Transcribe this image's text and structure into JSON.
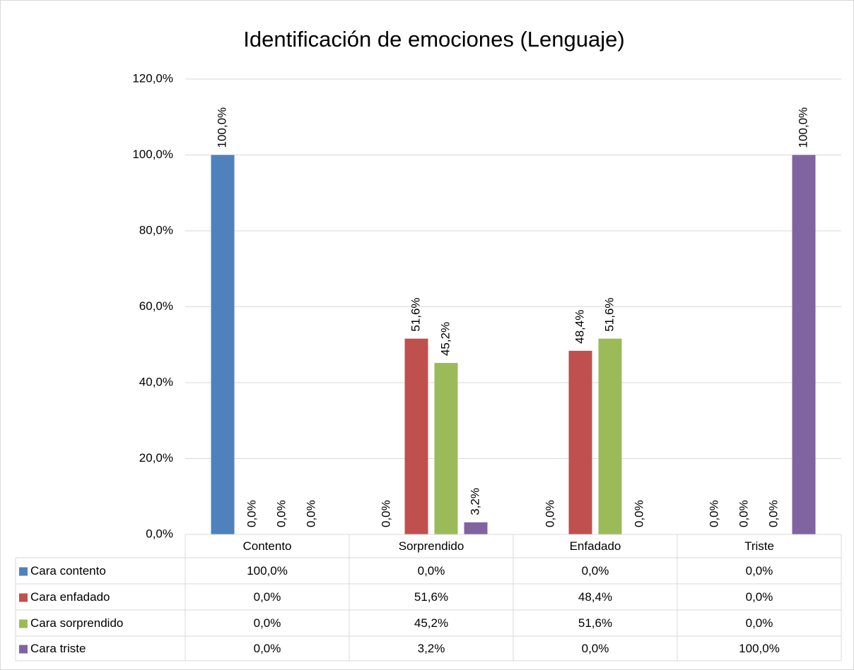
{
  "chart_data": {
    "type": "bar",
    "title": "Identificación de emociones (Lenguaje)",
    "categories": [
      "Contento",
      "Sorprendido",
      "Enfadado",
      "Triste"
    ],
    "series": [
      {
        "name": "Cara contento",
        "color": "#4f81bd",
        "values": [
          100,
          0,
          0,
          0
        ],
        "value_labels": [
          "100,0%",
          "0,0%",
          "0,0%",
          "0,0%"
        ]
      },
      {
        "name": "Cara enfadado",
        "color": "#c0504d",
        "values": [
          0,
          51.6,
          48.4,
          0
        ],
        "value_labels": [
          "0,0%",
          "51,6%",
          "48,4%",
          "0,0%"
        ]
      },
      {
        "name": "Cara sorprendido",
        "color": "#9bbb59",
        "values": [
          0,
          45.2,
          51.6,
          0
        ],
        "value_labels": [
          "0,0%",
          "45,2%",
          "51,6%",
          "0,0%"
        ]
      },
      {
        "name": "Cara triste",
        "color": "#8064a2",
        "values": [
          0,
          3.2,
          0,
          100
        ],
        "value_labels": [
          "0,0%",
          "3,2%",
          "0,0%",
          "100,0%"
        ]
      }
    ],
    "ylim": [
      0,
      120
    ],
    "yticks": [
      {
        "value": 0,
        "label": "0,0%"
      },
      {
        "value": 20,
        "label": "20,0%"
      },
      {
        "value": 40,
        "label": "40,0%"
      },
      {
        "value": 60,
        "label": "60,0%"
      },
      {
        "value": 80,
        "label": "80,0%"
      },
      {
        "value": 100,
        "label": "100,0%"
      },
      {
        "value": 120,
        "label": "120,0%"
      }
    ],
    "grid": true
  }
}
